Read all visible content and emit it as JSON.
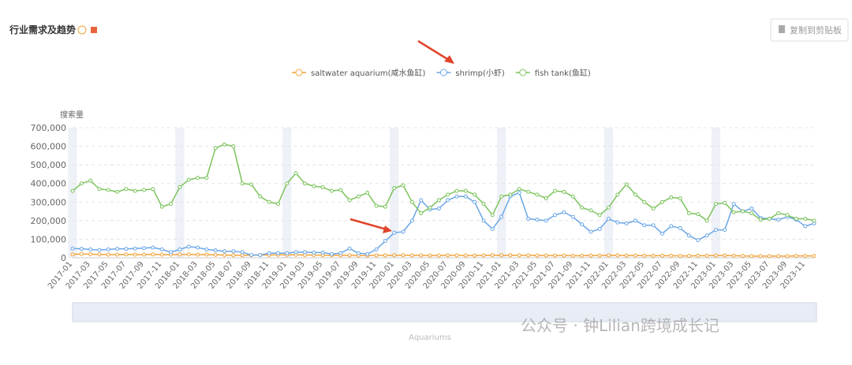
{
  "header": {
    "title": "行业需求及趋势",
    "copy_button": "复制到剪贴板"
  },
  "chart_data": {
    "type": "line",
    "y_axis_label": "搜索量",
    "slider_label": "Aquariums",
    "watermark": "公众号 · 钟Lilian跨境成长记",
    "categories": [
      "2017-01",
      null,
      "2017-03",
      null,
      "2017-05",
      null,
      "2017-07",
      null,
      "2017-09",
      null,
      "2017-11",
      null,
      "2018-01",
      null,
      "2018-03",
      null,
      "2018-05",
      null,
      "2018-07",
      null,
      "2018-09",
      null,
      "2018-11",
      null,
      "2019-01",
      null,
      "2019-03",
      null,
      "2019-05",
      null,
      "2019-07",
      null,
      "2019-09",
      null,
      "2019-11",
      null,
      "2020-01",
      null,
      "2020-03",
      null,
      "2020-05",
      null,
      "2020-07",
      null,
      "2020-09",
      null,
      "2020-11",
      null,
      "2021-01",
      null,
      "2021-03",
      null,
      "2021-05",
      null,
      "2021-07",
      null,
      "2021-09",
      null,
      "2021-11",
      null,
      "2022-01",
      null,
      "2022-03",
      null,
      "2022-05",
      null,
      "2022-07",
      null,
      "2022-09",
      null,
      "2022-11",
      null,
      "2023-01",
      null,
      "2023-03",
      null,
      "2023-05",
      null,
      "2023-07",
      null,
      "2023-09",
      null,
      "2023-11",
      null
    ],
    "series": [
      {
        "name": "saltwater aquarium(咸水鱼缸)",
        "color": "#f2a33a",
        "values": [
          18000,
          20000,
          19000,
          18000,
          17000,
          17000,
          18000,
          17000,
          17000,
          18000,
          17000,
          17000,
          18000,
          18000,
          17000,
          17000,
          16000,
          15000,
          14000,
          13000,
          14000,
          15000,
          15000,
          16000,
          16000,
          16000,
          15000,
          15000,
          14000,
          14000,
          13000,
          13000,
          12000,
          12000,
          13000,
          13000,
          14000,
          14000,
          13000,
          13000,
          12000,
          12000,
          13000,
          13000,
          12000,
          12000,
          13000,
          14000,
          14000,
          14000,
          13000,
          13000,
          12000,
          12000,
          12000,
          12000,
          11000,
          11000,
          12000,
          12000,
          13000,
          13000,
          12000,
          12000,
          11000,
          11000,
          11000,
          11000,
          10000,
          10000,
          11000,
          11000,
          12000,
          12000,
          11000,
          10000,
          9000,
          9000,
          9000,
          9000,
          9000,
          10000,
          10000,
          10000
        ]
      },
      {
        "name": "shrimp(小虾)",
        "color": "#6aa6e6",
        "values": [
          50000,
          48000,
          45000,
          42000,
          45000,
          48000,
          48000,
          50000,
          52000,
          55000,
          45000,
          30000,
          45000,
          60000,
          55000,
          45000,
          40000,
          35000,
          35000,
          30000,
          15000,
          15000,
          25000,
          25000,
          25000,
          30000,
          30000,
          28000,
          28000,
          20000,
          25000,
          50000,
          25000,
          20000,
          45000,
          90000,
          135000,
          140000,
          200000,
          310000,
          260000,
          265000,
          310000,
          330000,
          330000,
          300000,
          200000,
          155000,
          220000,
          330000,
          350000,
          210000,
          205000,
          200000,
          230000,
          245000,
          220000,
          180000,
          140000,
          155000,
          210000,
          190000,
          185000,
          200000,
          175000,
          175000,
          130000,
          170000,
          160000,
          120000,
          95000,
          120000,
          150000,
          150000,
          290000,
          250000,
          265000,
          215000,
          210000,
          205000,
          220000,
          205000,
          170000,
          185000
        ]
      },
      {
        "name": "fish tank(鱼缸)",
        "color": "#7cc35c",
        "values": [
          360000,
          400000,
          415000,
          370000,
          365000,
          355000,
          370000,
          360000,
          365000,
          370000,
          275000,
          290000,
          380000,
          420000,
          430000,
          430000,
          590000,
          610000,
          600000,
          400000,
          395000,
          330000,
          300000,
          290000,
          400000,
          455000,
          400000,
          385000,
          380000,
          360000,
          365000,
          310000,
          330000,
          350000,
          280000,
          275000,
          375000,
          390000,
          300000,
          240000,
          270000,
          310000,
          340000,
          360000,
          360000,
          340000,
          290000,
          230000,
          330000,
          340000,
          370000,
          355000,
          340000,
          320000,
          360000,
          355000,
          330000,
          270000,
          255000,
          230000,
          270000,
          340000,
          395000,
          340000,
          300000,
          265000,
          300000,
          325000,
          320000,
          240000,
          235000,
          200000,
          290000,
          295000,
          245000,
          250000,
          240000,
          205000,
          210000,
          240000,
          230000,
          210000,
          210000,
          200000
        ]
      }
    ],
    "ylim": [
      0,
      700000
    ],
    "yticks": [
      0,
      {
        "value": 100000,
        "label": "100,000"
      },
      {
        "value": 200000,
        "label": "200,000"
      },
      {
        "value": 300000,
        "label": "300,000"
      },
      {
        "value": 400000,
        "label": "400,000"
      },
      {
        "value": 500000,
        "label": "500,000"
      },
      {
        "value": 600000,
        "label": "600,000"
      },
      {
        "value": 700000,
        "label": "700,000"
      }
    ],
    "grid": true
  }
}
